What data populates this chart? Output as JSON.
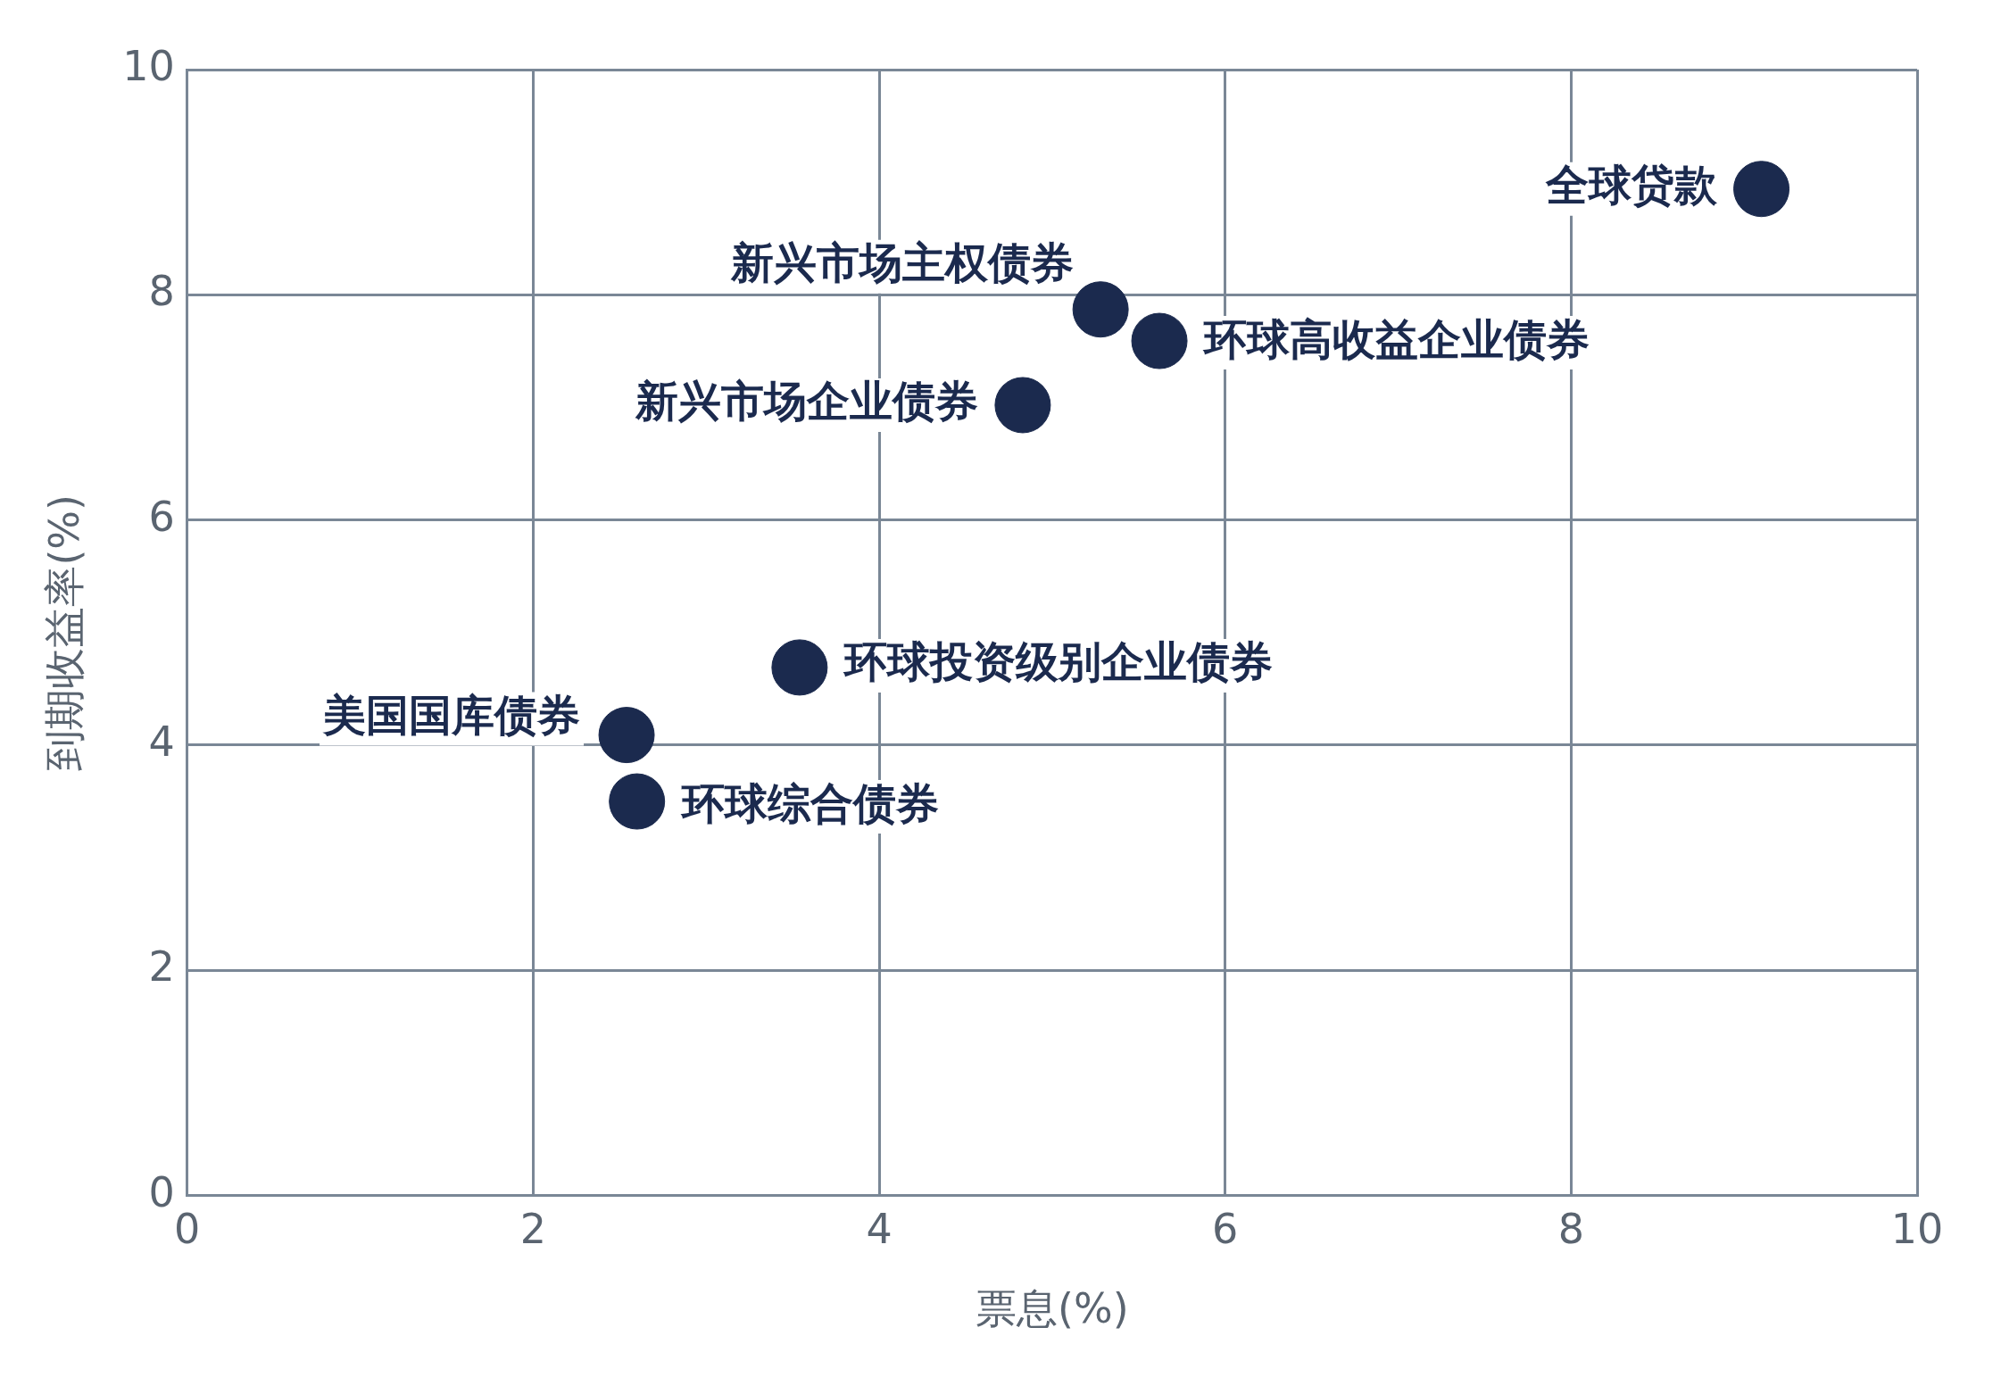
{
  "chart_data": {
    "type": "scatter",
    "xlabel": "票息(%)",
    "ylabel": "到期收益率(%)",
    "xlim": [
      0,
      10
    ],
    "xticks": [
      0,
      2,
      4,
      6,
      8,
      10
    ],
    "ylim": [
      0,
      10
    ],
    "yticks": [
      0,
      2,
      4,
      6,
      8,
      10
    ],
    "grid": true,
    "legend": false,
    "marker": "circle",
    "series": [
      {
        "name": "全球贷款",
        "color": "#1b2a4e",
        "x": [
          9.1
        ],
        "values": [
          8.94
        ]
      },
      {
        "name": "新兴市场主权债券",
        "color": "#1b2a4e",
        "x": [
          5.28
        ],
        "values": [
          7.87
        ]
      },
      {
        "name": "环球高收益企业债券",
        "color": "#1b2a4e",
        "x": [
          5.62
        ],
        "values": [
          7.59
        ]
      },
      {
        "name": "新兴市场企业债券",
        "color": "#1b2a4e",
        "x": [
          4.83
        ],
        "values": [
          7.02
        ]
      },
      {
        "name": "环球投资级别企业债券",
        "color": "#1b2a4e",
        "x": [
          3.54
        ],
        "values": [
          4.69
        ]
      },
      {
        "name": "美国国库债券",
        "color": "#1b2a4e",
        "x": [
          2.54
        ],
        "values": [
          4.09
        ]
      },
      {
        "name": "环球综合债券",
        "color": "#1b2a4e",
        "x": [
          2.6
        ],
        "values": [
          3.5
        ]
      }
    ]
  }
}
